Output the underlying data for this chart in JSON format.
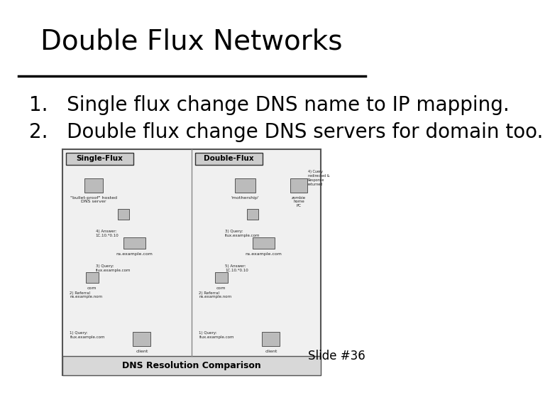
{
  "title": "Double Flux Networks",
  "bullet1": "1.   Single flux change DNS name to IP mapping.",
  "bullet2": "2.   Double flux change DNS servers for domain too.",
  "slide_number": "Slide #36",
  "background_color": "#ffffff",
  "title_fontsize": 28,
  "bullet_fontsize": 20,
  "slide_num_fontsize": 12,
  "title_color": "#000000",
  "bullet_color": "#000000",
  "line_color": "#000000"
}
